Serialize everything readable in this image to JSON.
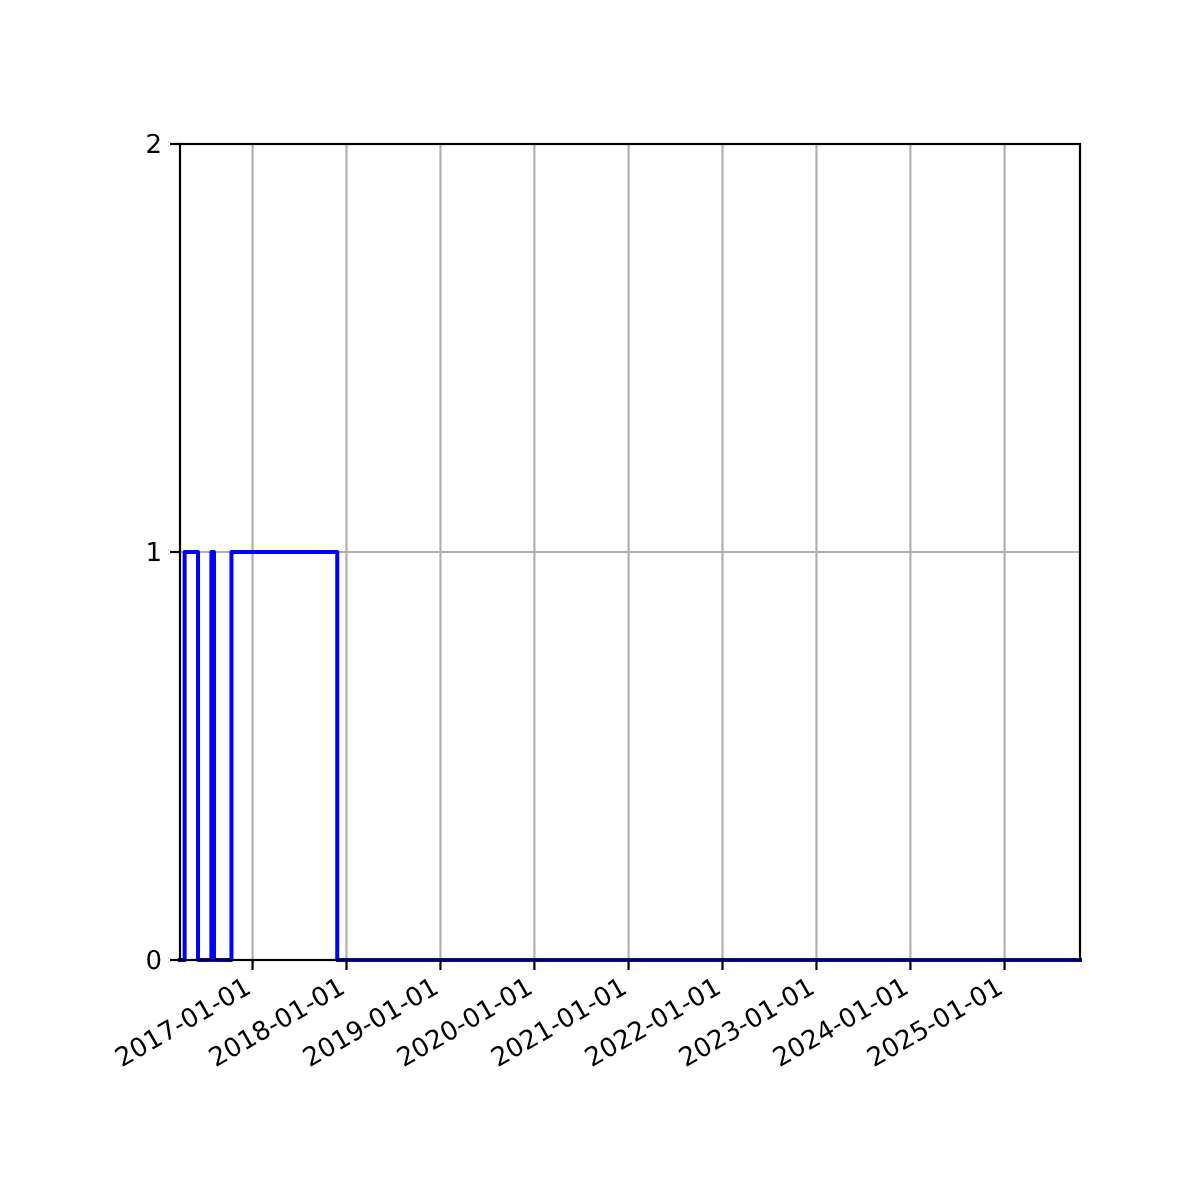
{
  "chart_data": {
    "type": "step",
    "x": [
      "2016-03-25",
      "2016-04-12",
      "2016-06-03",
      "2016-07-25",
      "2016-08-04",
      "2016-10-11",
      "2017-11-26",
      "2025-10-21"
    ],
    "series": [
      {
        "color": "#0000ff",
        "values": [
          0,
          1,
          0,
          1,
          0,
          1,
          0,
          0
        ]
      }
    ],
    "xlim": [
      "2016-03-25",
      "2025-10-21"
    ],
    "xticks": [
      "2017-01-01",
      "2018-01-01",
      "2019-01-01",
      "2020-01-01",
      "2021-01-01",
      "2022-01-01",
      "2023-01-01",
      "2024-01-01",
      "2025-01-01"
    ],
    "ylim": [
      0,
      2
    ],
    "yticks": [
      0,
      1,
      2
    ],
    "grid": true
  }
}
